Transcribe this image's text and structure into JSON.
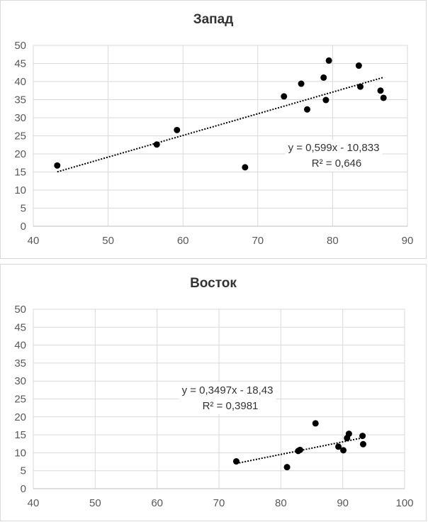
{
  "chart_data": [
    {
      "type": "scatter",
      "title": "Запад",
      "xlim": [
        40,
        90
      ],
      "ylim": [
        0,
        50
      ],
      "xticks": [
        "40",
        "50",
        "60",
        "70",
        "80",
        "90"
      ],
      "yticks": [
        "0",
        "5",
        "10",
        "15",
        "20",
        "25",
        "30",
        "35",
        "40",
        "45",
        "50"
      ],
      "grid": true,
      "points": [
        {
          "x": 43.2,
          "y": 16.8
        },
        {
          "x": 56.5,
          "y": 22.6
        },
        {
          "x": 59.2,
          "y": 26.6
        },
        {
          "x": 68.3,
          "y": 16.3
        },
        {
          "x": 73.5,
          "y": 35.9
        },
        {
          "x": 75.8,
          "y": 39.4
        },
        {
          "x": 76.6,
          "y": 32.3
        },
        {
          "x": 78.8,
          "y": 41.1
        },
        {
          "x": 79.1,
          "y": 34.9
        },
        {
          "x": 79.5,
          "y": 45.8
        },
        {
          "x": 83.5,
          "y": 44.4
        },
        {
          "x": 83.7,
          "y": 38.6
        },
        {
          "x": 86.4,
          "y": 37.5
        },
        {
          "x": 86.8,
          "y": 35.5
        }
      ],
      "trendline": {
        "slope": 0.599,
        "intercept": -10.833,
        "x_range": [
          43.2,
          86.8
        ]
      },
      "equation": "y = 0,599x - 10,833",
      "r2_label": "R² = 0,646"
    },
    {
      "type": "scatter",
      "title": "Восток",
      "xlim": [
        40,
        100
      ],
      "ylim": [
        0,
        50
      ],
      "xticks": [
        "40",
        "50",
        "60",
        "70",
        "80",
        "90",
        "100"
      ],
      "yticks": [
        "0",
        "5",
        "10",
        "15",
        "20",
        "25",
        "30",
        "35",
        "40",
        "45",
        "50"
      ],
      "grid": true,
      "points": [
        {
          "x": 72.8,
          "y": 7.6
        },
        {
          "x": 81.0,
          "y": 6.0
        },
        {
          "x": 82.8,
          "y": 10.5
        },
        {
          "x": 83.1,
          "y": 10.8
        },
        {
          "x": 85.6,
          "y": 18.2
        },
        {
          "x": 89.3,
          "y": 11.7
        },
        {
          "x": 90.1,
          "y": 10.7
        },
        {
          "x": 90.7,
          "y": 14.1
        },
        {
          "x": 91.0,
          "y": 15.3
        },
        {
          "x": 93.2,
          "y": 14.7
        },
        {
          "x": 93.3,
          "y": 12.4
        }
      ],
      "trendline": {
        "slope": 0.3497,
        "intercept": -18.43,
        "x_range": [
          72.8,
          93.3
        ]
      },
      "equation": "y = 0,3497x - 18,43",
      "r2_label": "R² = 0,3981"
    }
  ]
}
